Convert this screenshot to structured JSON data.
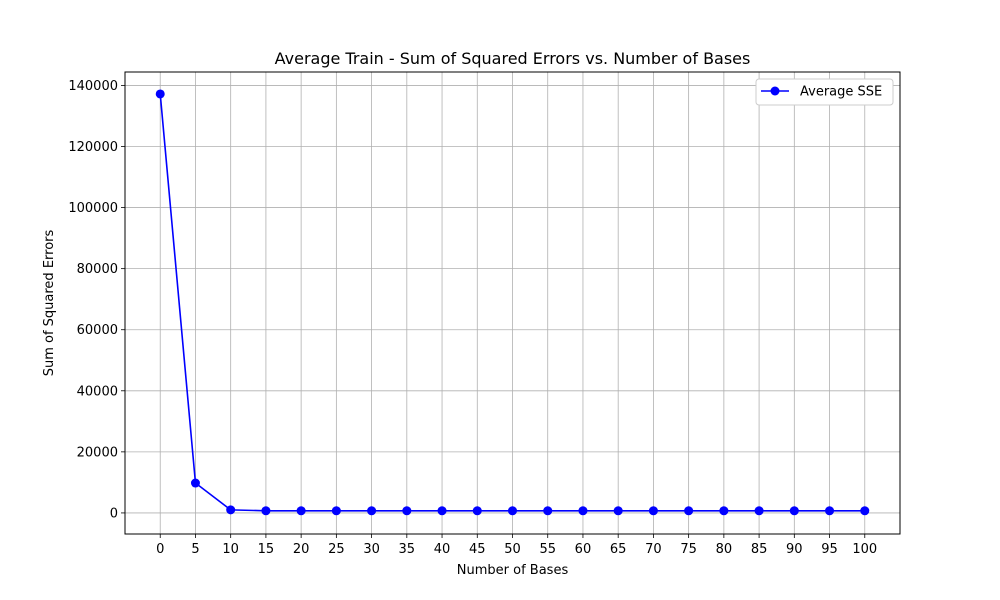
{
  "chart_data": {
    "type": "line",
    "title": "Average Train - Sum of Squared Errors vs. Number of Bases",
    "xlabel": "Number of Bases",
    "ylabel": "Sum of Squared Errors",
    "x": [
      0,
      5,
      10,
      15,
      20,
      25,
      30,
      35,
      40,
      45,
      50,
      55,
      60,
      65,
      70,
      75,
      80,
      85,
      90,
      95,
      100
    ],
    "xticks": [
      "0",
      "5",
      "10",
      "15",
      "20",
      "25",
      "30",
      "35",
      "40",
      "45",
      "50",
      "55",
      "60",
      "65",
      "70",
      "75",
      "80",
      "85",
      "90",
      "95",
      "100"
    ],
    "yticks": [
      "0",
      "20000",
      "40000",
      "60000",
      "80000",
      "100000",
      "120000",
      "140000"
    ],
    "ytick_values": [
      0,
      20000,
      40000,
      60000,
      80000,
      100000,
      120000,
      140000
    ],
    "xlim": [
      -5,
      105
    ],
    "ylim": [
      -6900,
      144400
    ],
    "grid": true,
    "legend_position": "top-right",
    "series": [
      {
        "name": "Average SSE",
        "color": "#0000ff",
        "marker": "circle",
        "values": [
          137200,
          9800,
          1000,
          700,
          700,
          700,
          700,
          700,
          700,
          700,
          700,
          700,
          700,
          700,
          700,
          700,
          700,
          700,
          700,
          700,
          700
        ]
      }
    ]
  }
}
